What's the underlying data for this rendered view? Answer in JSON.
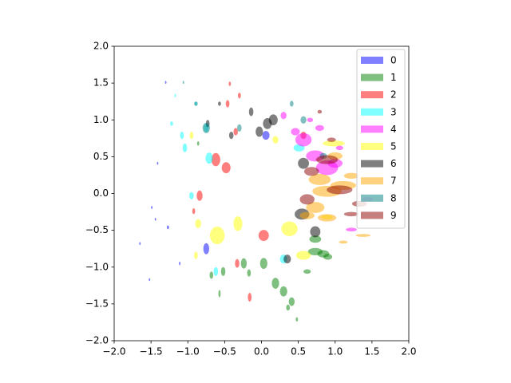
{
  "chart_data": {
    "type": "scatter",
    "marker": "ellipse",
    "xlim": [
      -2,
      2
    ],
    "ylim": [
      -2,
      2
    ],
    "xticks": [
      {
        "value": -2,
        "label": "−2.0"
      },
      {
        "value": -1.5,
        "label": "−1.5"
      },
      {
        "value": -1,
        "label": "−1.0"
      },
      {
        "value": -0.5,
        "label": "−0.5"
      },
      {
        "value": 0,
        "label": "0.0"
      },
      {
        "value": 0.5,
        "label": "0.5"
      },
      {
        "value": 1,
        "label": "1.0"
      },
      {
        "value": 1.5,
        "label": "1.5"
      },
      {
        "value": 2,
        "label": "2.0"
      }
    ],
    "yticks": [
      {
        "value": -2,
        "label": "−2.0"
      },
      {
        "value": -1.5,
        "label": "−1.5"
      },
      {
        "value": -1,
        "label": "−1.0"
      },
      {
        "value": -0.5,
        "label": "−0.5"
      },
      {
        "value": 0,
        "label": "0.0"
      },
      {
        "value": 0.5,
        "label": "0.5"
      },
      {
        "value": 1,
        "label": "1.0"
      },
      {
        "value": 1.5,
        "label": "1.5"
      },
      {
        "value": 2,
        "label": "2.0"
      }
    ],
    "legend": "upper right",
    "alpha": 0.5,
    "series": [
      {
        "name": "0",
        "color": "#0000ff",
        "x": [
          -1.49,
          -1.65,
          -1.44,
          -1.52,
          -1.27,
          -1.11,
          -0.75,
          0.06,
          -1.3,
          -1.41
        ],
        "y": [
          -0.19,
          -0.68,
          -0.35,
          -1.17,
          -0.46,
          -0.95,
          -0.75,
          0.79,
          1.51,
          0.41
        ],
        "width": [
          0.02,
          0.02,
          0.02,
          0.02,
          0.03,
          0.02,
          0.08,
          0.1,
          0.02,
          0.02
        ],
        "height": [
          0.04,
          0.04,
          0.04,
          0.04,
          0.05,
          0.05,
          0.15,
          0.12,
          0.04,
          0.04
        ]
      },
      {
        "name": "1",
        "color": "#008000",
        "x": [
          0.73,
          0.84,
          0.9,
          0.19,
          0.3,
          0.41,
          0.36,
          0.48,
          0.73,
          0.03,
          -0.24,
          -0.52,
          -0.68,
          -0.57,
          -0.17,
          0.62,
          -0.86
        ],
        "y": [
          -0.79,
          -0.82,
          -0.86,
          -1.22,
          -1.33,
          -1.47,
          -1.55,
          -1.71,
          -0.62,
          -0.95,
          -0.95,
          -1.06,
          -1.11,
          -1.36,
          -1.08,
          -1.06,
          0.68
        ],
        "width": [
          0.2,
          0.16,
          0.12,
          0.1,
          0.1,
          0.08,
          0.05,
          0.03,
          0.16,
          0.1,
          0.08,
          0.06,
          0.05,
          0.03,
          0.05,
          0.1,
          0.03
        ],
        "height": [
          0.1,
          0.1,
          0.08,
          0.15,
          0.14,
          0.12,
          0.08,
          0.06,
          0.1,
          0.15,
          0.14,
          0.12,
          0.1,
          0.1,
          0.1,
          0.06,
          0.06
        ]
      },
      {
        "name": "2",
        "color": "#ff0000",
        "x": [
          -0.62,
          -0.48,
          0.03,
          -0.84,
          -0.46,
          -0.3,
          -0.35,
          -0.16,
          -0.92,
          -0.43,
          -0.33,
          0.57
        ],
        "y": [
          0.46,
          0.35,
          -0.57,
          -0.03,
          1.22,
          1.33,
          0.84,
          -1.41,
          -0.24,
          1.49,
          -0.95,
          0.79
        ],
        "width": [
          0.12,
          0.12,
          0.14,
          0.08,
          0.05,
          0.04,
          0.06,
          0.05,
          0.04,
          0.03,
          0.06,
          0.08
        ],
        "height": [
          0.18,
          0.15,
          0.15,
          0.14,
          0.1,
          0.08,
          0.1,
          0.12,
          0.08,
          0.06,
          0.12,
          0.1
        ]
      },
      {
        "name": "3",
        "color": "#00ffff",
        "x": [
          -0.71,
          -1.04,
          -0.95,
          -1.08,
          -1.22,
          -0.75,
          -0.62,
          0.3,
          0.51,
          -1.17,
          -0.89
        ],
        "y": [
          0.48,
          0.62,
          -0.03,
          0.79,
          0.95,
          0.89,
          -1.06,
          -0.89,
          0.62,
          1.33,
          1.22
        ],
        "width": [
          0.1,
          0.06,
          0.06,
          0.05,
          0.04,
          0.06,
          0.06,
          0.1,
          0.15,
          0.02,
          0.03
        ],
        "height": [
          0.15,
          0.12,
          0.1,
          0.1,
          0.06,
          0.12,
          0.12,
          0.12,
          0.1,
          0.05,
          0.06
        ]
      },
      {
        "name": "4",
        "color": "#ff00ff",
        "x": [
          0.57,
          0.73,
          1.0,
          0.89,
          0.79,
          0.66,
          0.3,
          1.22,
          1.44,
          0.46,
          1.06
        ],
        "y": [
          0.73,
          0.51,
          0.41,
          0.35,
          0.89,
          1.0,
          1.06,
          -0.49,
          -0.08,
          0.84,
          0.62
        ],
        "width": [
          0.22,
          0.25,
          0.2,
          0.3,
          0.12,
          0.08,
          0.08,
          0.15,
          0.15,
          0.12,
          0.1
        ],
        "height": [
          0.18,
          0.15,
          0.12,
          0.2,
          0.08,
          0.06,
          0.1,
          0.05,
          0.06,
          0.1,
          0.06
        ]
      },
      {
        "name": "5",
        "color": "#ffff00",
        "x": [
          -0.32,
          0.38,
          -0.6,
          -0.86,
          -0.95,
          0.19,
          0.98,
          0.57,
          0.89,
          -0.89
        ],
        "y": [
          -0.41,
          -0.48,
          -0.57,
          -0.41,
          0.79,
          0.73,
          0.68,
          -0.84,
          -0.32,
          -0.84
        ],
        "width": [
          0.12,
          0.22,
          0.2,
          0.08,
          0.05,
          0.08,
          0.3,
          0.2,
          0.15,
          0.05
        ],
        "height": [
          0.2,
          0.2,
          0.24,
          0.12,
          0.1,
          0.1,
          0.08,
          0.12,
          0.06,
          0.1
        ]
      },
      {
        "name": "6",
        "color": "#000000",
        "x": [
          0.08,
          0.16,
          -0.03,
          -0.14,
          0.55,
          0.73,
          -0.41,
          -0.73,
          -0.57,
          0.57,
          0.35
        ],
        "y": [
          0.95,
          1.0,
          0.84,
          1.11,
          -0.28,
          -0.52,
          0.79,
          0.95,
          1.22,
          0.41,
          -0.89
        ],
        "width": [
          0.12,
          0.12,
          0.1,
          0.06,
          0.2,
          0.14,
          0.06,
          0.05,
          0.04,
          0.15,
          0.1
        ],
        "height": [
          0.15,
          0.15,
          0.14,
          0.12,
          0.15,
          0.15,
          0.1,
          0.1,
          0.06,
          0.15,
          0.12
        ]
      },
      {
        "name": "7",
        "color": "#ffa500",
        "x": [
          0.89,
          1.11,
          0.89,
          1.38,
          0.73,
          1.0,
          0.79,
          1.22,
          1.11,
          0.62
        ],
        "y": [
          0.03,
          0.11,
          -0.33,
          -0.57,
          -0.19,
          0.51,
          0.19,
          0.24,
          -0.66,
          -0.3
        ],
        "width": [
          0.4,
          0.35,
          0.25,
          0.2,
          0.25,
          0.2,
          0.3,
          0.2,
          0.12,
          0.2
        ],
        "height": [
          0.15,
          0.12,
          0.1,
          0.04,
          0.15,
          0.1,
          0.15,
          0.08,
          0.04,
          0.1
        ]
      },
      {
        "name": "8",
        "color": "#008080",
        "x": [
          -0.89,
          -0.75,
          -0.3,
          -1.06,
          0.57,
          0.41,
          0.84
        ],
        "y": [
          1.22,
          0.89,
          0.89,
          1.51,
          1.0,
          1.22,
          0.51
        ],
        "width": [
          0.05,
          0.1,
          0.06,
          0.02,
          0.08,
          0.05,
          0.1
        ],
        "height": [
          0.06,
          0.14,
          0.1,
          0.04,
          0.1,
          0.08,
          0.08
        ]
      },
      {
        "name": "9",
        "color": "#8b0000",
        "x": [
          0.89,
          1.06,
          0.62,
          1.22,
          0.79,
          0.68,
          1.33,
          0.95
        ],
        "y": [
          0.46,
          0.05,
          -0.08,
          -0.28,
          1.11,
          0.3,
          -0.14,
          0.73
        ],
        "width": [
          0.3,
          0.35,
          0.2,
          0.2,
          0.06,
          0.2,
          0.2,
          0.12
        ],
        "height": [
          0.12,
          0.12,
          0.14,
          0.06,
          0.05,
          0.12,
          0.08,
          0.06
        ]
      }
    ]
  }
}
